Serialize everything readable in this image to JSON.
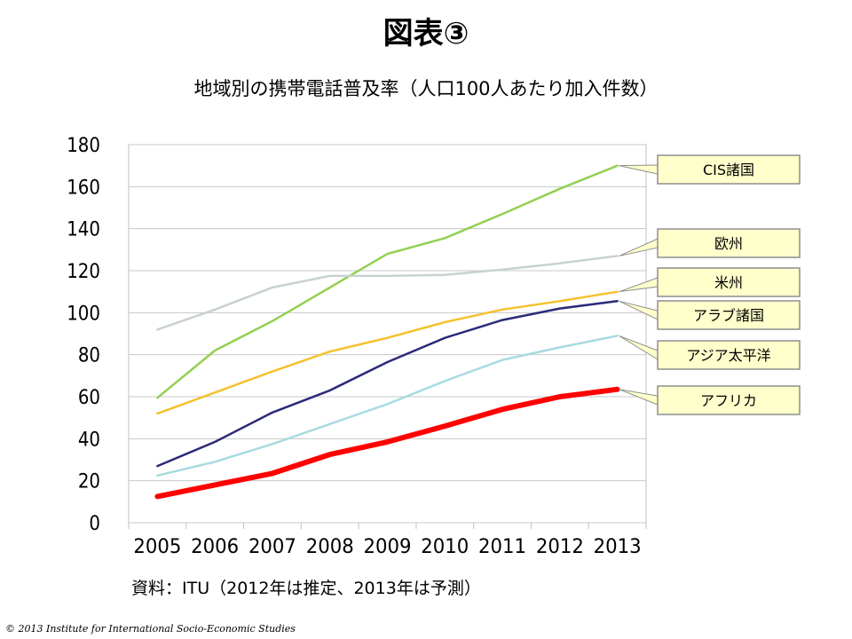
{
  "header": {
    "figure_title": "図表③",
    "chart_title": "地域別の携帯電話普及率（人口100人あたり加入件数）"
  },
  "footer": {
    "source": "資料：ITU（2012年は推定、2013年は予測）",
    "copyright": "© 2013 Institute for International Socio-Economic Studies"
  },
  "chart_data": {
    "type": "line",
    "title": "地域別の携帯電話普及率（人口100人あたり加入件数）",
    "x": [
      "2005",
      "2006",
      "2007",
      "2008",
      "2009",
      "2010",
      "2011",
      "2012",
      "2013"
    ],
    "ylim": [
      0,
      180
    ],
    "yticks": [
      0,
      20,
      40,
      60,
      80,
      100,
      120,
      140,
      160,
      180
    ],
    "grid": true,
    "legend": "right, callout labels",
    "series": [
      {
        "name": "CIS諸国",
        "color": "#92d050",
        "values": [
          59.5,
          82,
          96,
          112,
          128,
          135.5,
          147,
          159,
          170
        ]
      },
      {
        "name": "欧州",
        "color": "#c8d2d2",
        "values": [
          92,
          101.5,
          112,
          117.5,
          117.5,
          118,
          120.5,
          123.5,
          127
        ]
      },
      {
        "name": "米州",
        "color": "#f5c12d",
        "values": [
          52,
          62,
          72,
          81.5,
          88,
          95.5,
          101.5,
          105.5,
          110
        ]
      },
      {
        "name": "アラブ諸国",
        "color": "#2a2a7a",
        "values": [
          27,
          38.5,
          52.5,
          63,
          76.5,
          88,
          96.5,
          102,
          105.5
        ]
      },
      {
        "name": "アジア太平洋",
        "color": "#a8dbe0",
        "values": [
          22.5,
          29,
          37.5,
          47,
          56.5,
          67.5,
          77.5,
          83.5,
          89
        ]
      },
      {
        "name": "アフリカ",
        "color": "#ff0000",
        "values": [
          12.5,
          18,
          23.5,
          32.5,
          38.5,
          46,
          54,
          60,
          63.5
        ]
      }
    ]
  }
}
